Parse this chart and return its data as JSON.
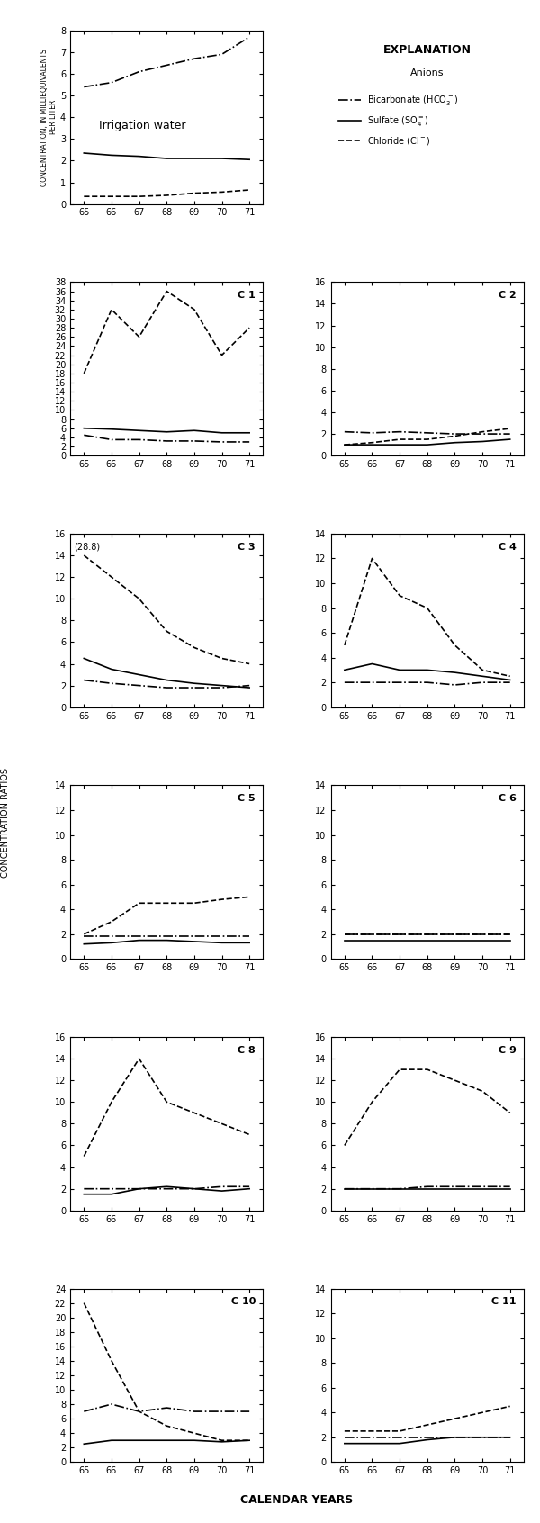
{
  "years": [
    65,
    66,
    67,
    68,
    69,
    70,
    71
  ],
  "irr_water": {
    "title": "Irrigation water",
    "ylabel": "CONCENTRATION, IN MILLIEQUIVALENTS\nPER LITER",
    "ylim": [
      0,
      8
    ],
    "yticks": [
      0,
      1,
      2,
      3,
      4,
      5,
      6,
      7,
      8
    ],
    "bicarb": [
      5.4,
      5.6,
      6.1,
      6.4,
      6.7,
      6.9,
      7.7
    ],
    "sulfate": [
      2.35,
      2.25,
      2.2,
      2.1,
      2.1,
      2.1,
      2.05
    ],
    "chloride": [
      0.35,
      0.35,
      0.35,
      0.4,
      0.5,
      0.55,
      0.65
    ]
  },
  "wells": {
    "C1": {
      "ylim": [
        0,
        38
      ],
      "yticks": [
        0,
        2,
        4,
        6,
        8,
        10,
        12,
        14,
        16,
        18,
        20,
        22,
        24,
        26,
        28,
        30,
        32,
        34,
        36,
        38
      ],
      "ytick_labels": [
        "0",
        "",
        "4",
        "",
        "8",
        "",
        "12",
        "",
        "16",
        "",
        "20",
        "",
        "24",
        "",
        "28",
        "",
        "32",
        "",
        "36",
        "38"
      ],
      "bicarb": [
        4.5,
        3.5,
        3.5,
        3.2,
        3.2,
        3.0,
        3.0
      ],
      "sulfate": [
        6.0,
        5.8,
        5.5,
        5.2,
        5.5,
        5.0,
        5.0
      ],
      "chloride": [
        18,
        32,
        26,
        36,
        32,
        22,
        28
      ]
    },
    "C2": {
      "ylim": [
        0,
        16
      ],
      "yticks": [
        0,
        2,
        4,
        6,
        8,
        10,
        12,
        14,
        16
      ],
      "bicarb": [
        2.2,
        2.1,
        2.2,
        2.1,
        2.0,
        2.0,
        2.0
      ],
      "sulfate": [
        1.0,
        1.0,
        1.0,
        1.0,
        1.2,
        1.3,
        1.5
      ],
      "chloride": [
        1.0,
        1.2,
        1.5,
        1.5,
        1.8,
        2.2,
        2.5
      ]
    },
    "C3": {
      "ylim": [
        0,
        16
      ],
      "yticks": [
        0,
        2,
        4,
        6,
        8,
        10,
        12,
        14,
        16
      ],
      "annotation": "(28.8)",
      "bicarb": [
        2.5,
        2.2,
        2.0,
        1.8,
        1.8,
        1.8,
        2.0
      ],
      "sulfate": [
        4.5,
        3.5,
        3.0,
        2.5,
        2.2,
        2.0,
        1.8
      ],
      "chloride": [
        14.0,
        12.0,
        10.0,
        7.0,
        5.5,
        4.5,
        4.0
      ]
    },
    "C4": {
      "ylim": [
        0,
        14
      ],
      "yticks": [
        0,
        2,
        4,
        6,
        8,
        10,
        12,
        14
      ],
      "bicarb": [
        2.0,
        2.0,
        2.0,
        2.0,
        1.8,
        2.0,
        2.0
      ],
      "sulfate": [
        3.0,
        3.5,
        3.0,
        3.0,
        2.8,
        2.5,
        2.2
      ],
      "chloride": [
        5.0,
        12.0,
        9.0,
        8.0,
        5.0,
        3.0,
        2.5
      ]
    },
    "C5": {
      "ylim": [
        0,
        14
      ],
      "yticks": [
        0,
        2,
        4,
        6,
        8,
        10,
        12,
        14
      ],
      "bicarb": [
        1.8,
        1.8,
        1.8,
        1.8,
        1.8,
        1.8,
        1.8
      ],
      "sulfate": [
        1.2,
        1.3,
        1.5,
        1.5,
        1.4,
        1.3,
        1.3
      ],
      "chloride": [
        2.0,
        3.0,
        4.5,
        4.5,
        4.5,
        4.8,
        5.0
      ]
    },
    "C6": {
      "ylim": [
        0,
        14
      ],
      "yticks": [
        0,
        2,
        4,
        6,
        8,
        10,
        12,
        14
      ],
      "bicarb": [
        2.0,
        2.0,
        2.0,
        2.0,
        2.0,
        2.0,
        2.0
      ],
      "sulfate": [
        1.5,
        1.5,
        1.5,
        1.5,
        1.5,
        1.5,
        1.5
      ],
      "chloride": [
        2.0,
        2.0,
        2.0,
        2.0,
        2.0,
        2.0,
        2.0
      ]
    },
    "C8": {
      "ylim": [
        0,
        16
      ],
      "yticks": [
        0,
        2,
        4,
        6,
        8,
        10,
        12,
        14,
        16
      ],
      "bicarb": [
        2.0,
        2.0,
        2.0,
        2.0,
        2.0,
        2.2,
        2.2
      ],
      "sulfate": [
        1.5,
        1.5,
        2.0,
        2.2,
        2.0,
        1.8,
        2.0
      ],
      "chloride": [
        5.0,
        10.0,
        14.0,
        10.0,
        9.0,
        8.0,
        7.0
      ]
    },
    "C9": {
      "ylim": [
        0,
        16
      ],
      "yticks": [
        0,
        2,
        4,
        6,
        8,
        10,
        12,
        14,
        16
      ],
      "bicarb": [
        2.0,
        2.0,
        2.0,
        2.2,
        2.2,
        2.2,
        2.2
      ],
      "sulfate": [
        2.0,
        2.0,
        2.0,
        2.0,
        2.0,
        2.0,
        2.0
      ],
      "chloride": [
        6.0,
        10.0,
        13.0,
        13.0,
        12.0,
        11.0,
        9.0
      ]
    },
    "C10": {
      "ylim": [
        0,
        24
      ],
      "yticks": [
        0,
        2,
        4,
        6,
        8,
        10,
        12,
        14,
        16,
        18,
        20,
        22,
        24
      ],
      "bicarb": [
        7.0,
        8.0,
        7.0,
        7.5,
        7.0,
        7.0,
        7.0
      ],
      "sulfate": [
        2.5,
        3.0,
        3.0,
        3.0,
        3.0,
        2.8,
        3.0
      ],
      "chloride": [
        22.0,
        14.0,
        7.0,
        5.0,
        4.0,
        3.0,
        3.0
      ]
    },
    "C11": {
      "ylim": [
        0,
        14
      ],
      "yticks": [
        0,
        2,
        4,
        6,
        8,
        10,
        12,
        14
      ],
      "bicarb": [
        2.0,
        2.0,
        2.0,
        2.0,
        2.0,
        2.0,
        2.0
      ],
      "sulfate": [
        1.5,
        1.5,
        1.5,
        1.8,
        2.0,
        2.0,
        2.0
      ],
      "chloride": [
        2.5,
        2.5,
        2.5,
        3.0,
        3.5,
        4.0,
        4.5
      ]
    }
  },
  "line_styles": {
    "bicarb": {
      "linestyle": "-.",
      "color": "black",
      "linewidth": 1.2
    },
    "sulfate": {
      "linestyle": "-",
      "color": "black",
      "linewidth": 1.2
    },
    "chloride": {
      "linestyle": "--",
      "color": "black",
      "linewidth": 1.2
    }
  },
  "xlabel": "CALENDAR YEARS",
  "ylabel": "CONCENTRATION RATIOS",
  "background": "white"
}
